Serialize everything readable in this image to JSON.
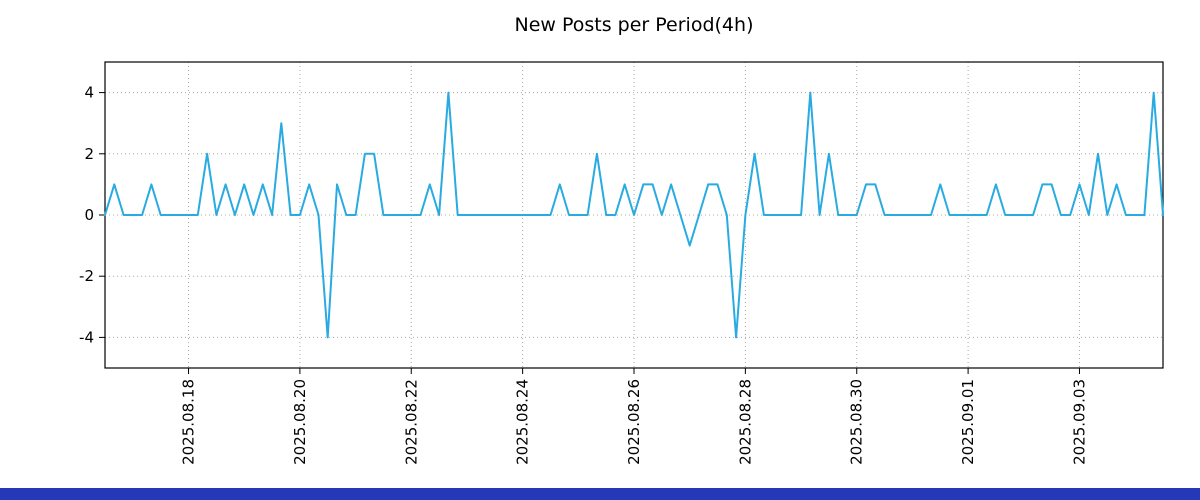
{
  "chart_data": {
    "type": "line",
    "title": "New Posts per Period(4h)",
    "xlabel": "",
    "ylabel": "",
    "x_start": "2025.08.16 12:00",
    "x_step_hours": 4,
    "x_tick_labels": [
      "2025.08.18",
      "2025.08.20",
      "2025.08.22",
      "2025.08.24",
      "2025.08.26",
      "2025.08.28",
      "2025.08.30",
      "2025.09.01",
      "2025.09.03"
    ],
    "x_tick_indices": [
      9,
      21,
      33,
      45,
      57,
      69,
      81,
      93,
      105
    ],
    "y_ticks": [
      -4,
      -2,
      0,
      2,
      4
    ],
    "ylim": [
      -5,
      5
    ],
    "grid": "dotted",
    "legend": "none",
    "line_color": "#29abe2",
    "grid_color": "#a8a8a8",
    "axis_color": "#000000",
    "values": [
      0,
      1,
      0,
      0,
      0,
      1,
      0,
      0,
      0,
      0,
      0,
      2,
      0,
      1,
      0,
      1,
      0,
      1,
      0,
      3,
      0,
      0,
      1,
      0,
      -4,
      1,
      0,
      0,
      2,
      2,
      0,
      0,
      0,
      0,
      0,
      1,
      0,
      4,
      0,
      0,
      0,
      0,
      0,
      0,
      0,
      0,
      0,
      0,
      0,
      1,
      0,
      0,
      0,
      2,
      0,
      0,
      1,
      0,
      1,
      1,
      0,
      1,
      0,
      -1,
      0,
      1,
      1,
      0,
      -4,
      0,
      2,
      0,
      0,
      0,
      0,
      0,
      4,
      0,
      2,
      0,
      0,
      0,
      1,
      1,
      0,
      0,
      0,
      0,
      0,
      0,
      1,
      0,
      0,
      0,
      0,
      0,
      1,
      0,
      0,
      0,
      0,
      1,
      1,
      0,
      0,
      1,
      0,
      2,
      0,
      1,
      0,
      0,
      0,
      4,
      0
    ]
  },
  "footer": {
    "bar_color": "#2438b8"
  }
}
